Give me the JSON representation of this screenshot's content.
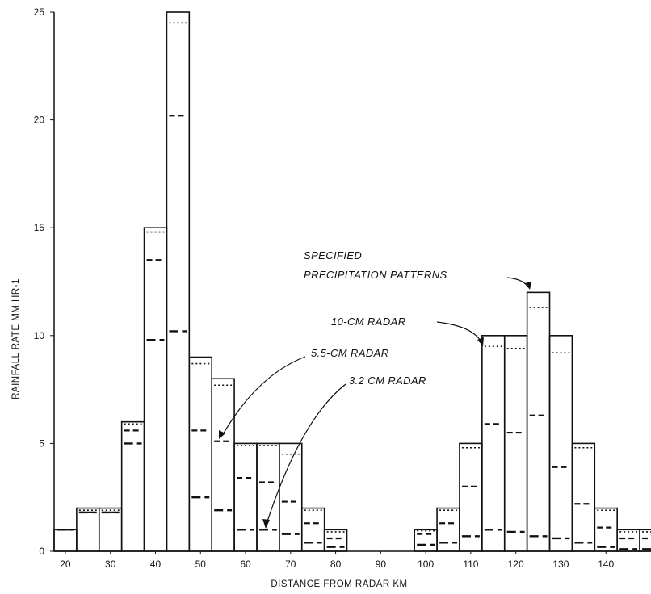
{
  "chart_data": {
    "type": "bar",
    "title": "",
    "xlabel": "DISTANCE FROM RADAR  KM",
    "ylabel": "RAINFALL RATE  MM HR-1",
    "xlim": [
      17.5,
      150
    ],
    "ylim": [
      0,
      25
    ],
    "bin_width": 5,
    "x_ticks": [
      "20",
      "30",
      "40",
      "50",
      "60",
      "70",
      "80",
      "90",
      "100",
      "110",
      "120",
      "130",
      "140"
    ],
    "y_ticks": [
      "0",
      "5",
      "10",
      "15",
      "20",
      "25"
    ],
    "bins": [
      17.5,
      22.5,
      27.5,
      32.5,
      37.5,
      42.5,
      47.5,
      52.5,
      57.5,
      62.5,
      67.5,
      72.5,
      77.5,
      97.5,
      102.5,
      107.5,
      112.5,
      117.5,
      122.5,
      127.5,
      132.5,
      137.5,
      142.5,
      147.5
    ],
    "series": [
      {
        "name": "SPECIFIED PRECIPITATION PATTERNS",
        "style": "solid",
        "values": [
          1,
          2,
          2,
          6,
          15,
          25,
          9,
          8,
          5,
          5,
          5,
          2,
          1,
          1,
          2,
          5,
          10,
          10,
          12,
          10,
          5,
          2,
          1,
          1
        ]
      },
      {
        "name": "10-CM RADAR",
        "style": "dotted",
        "values": [
          1,
          1.9,
          1.9,
          5.9,
          14.8,
          24.5,
          8.7,
          7.7,
          4.9,
          4.9,
          4.5,
          1.9,
          0.9,
          0.95,
          1.9,
          4.8,
          9.5,
          9.4,
          11.3,
          9.2,
          4.8,
          1.9,
          0.9,
          0.9
        ]
      },
      {
        "name": "5.5-CM RADAR",
        "style": "dashed",
        "values": [
          1,
          1.8,
          1.8,
          5.6,
          13.5,
          20.2,
          5.6,
          5.1,
          3.4,
          3.2,
          2.3,
          1.3,
          0.6,
          0.8,
          1.3,
          3.0,
          5.9,
          5.5,
          6.3,
          3.9,
          2.2,
          1.1,
          0.6,
          0.6
        ]
      },
      {
        "name": "3.2 CM RADAR",
        "style": "long-dashed",
        "values": [
          1,
          1.8,
          1.8,
          5.0,
          9.8,
          10.2,
          2.5,
          1.9,
          1.0,
          1.0,
          0.8,
          0.4,
          0.2,
          0.3,
          0.4,
          0.7,
          1.0,
          0.9,
          0.7,
          0.6,
          0.4,
          0.2,
          0.1,
          0.1
        ]
      }
    ],
    "annotations": [
      {
        "text": "SPECIFIED",
        "series": 0
      },
      {
        "text": "PRECIPITATION PATTERNS",
        "series": 0
      },
      {
        "text": "10-CM RADAR",
        "series": 1
      },
      {
        "text": "5.5-CM RADAR",
        "series": 2
      },
      {
        "text": "3.2  CM RADAR",
        "series": 3
      }
    ],
    "grid": false,
    "legend": "none"
  },
  "colors": {
    "ink": "#111111",
    "background": "#ffffff"
  }
}
